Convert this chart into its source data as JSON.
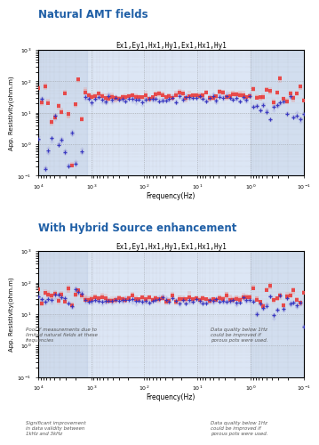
{
  "title1": "Natural AMT fields",
  "title2": "With Hybrid Source enhancement",
  "subtitle": "Ex1,Ey1,Hx1,Hy1,Ex1,Hx1,Hy1",
  "ylabel": "App. Resistivity(ohm.m)",
  "xlabel": "Frequency(Hz)",
  "ylim": [
    0.1,
    1000
  ],
  "xlim_left": 10000,
  "xlim_right": 0.1,
  "note1_left": "Poor Y measurements due to\nlimited natural fields at these\nfrequencies",
  "note1_right": "Data quality below 1Hz\ncould be improved if\nporous pots were used.",
  "note2_left": "Significant improvement\nin data validity between\n1kHz and 3kHz",
  "note2_right": "Data quality below 1Hz\ncould be improved if\nporous pots were used.",
  "bg_color": "#dce6f5",
  "shade_left_color": "#b8c8e0",
  "title1_color": "#1f5fa6",
  "title2_color": "#1f5fa6",
  "red_color": "#e84040",
  "blue_color": "#3030c0",
  "pink_color": "#e8a0a0",
  "lightblue_color": "#9090d8"
}
